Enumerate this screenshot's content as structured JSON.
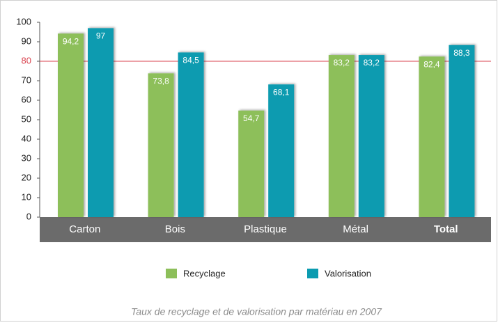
{
  "chart_data": {
    "type": "bar",
    "categories": [
      "Carton",
      "Bois",
      "Plastique",
      "Métal",
      "Total"
    ],
    "category_bold": [
      false,
      false,
      false,
      false,
      true
    ],
    "series": [
      {
        "name": "Recyclage",
        "color": "#8dbf5a",
        "values": [
          94.2,
          73.8,
          54.7,
          83.2,
          82.4
        ],
        "value_labels": [
          "94,2",
          "73,8",
          "54,7",
          "83,2",
          "82,4"
        ]
      },
      {
        "name": "Valorisation",
        "color": "#0b9bb0",
        "values": [
          97,
          84.5,
          68.1,
          83.2,
          88.3
        ],
        "value_labels": [
          "97",
          "84,5",
          "68,1",
          "83,2",
          "88,3"
        ]
      }
    ],
    "ylim": [
      0,
      100
    ],
    "yticks": [
      0,
      10,
      20,
      30,
      40,
      50,
      60,
      70,
      80,
      90,
      100
    ],
    "reference_line": {
      "value": 80,
      "color": "#d9434f"
    },
    "caption": "Taux de recyclage et de valorisation par matériau en 2007"
  }
}
